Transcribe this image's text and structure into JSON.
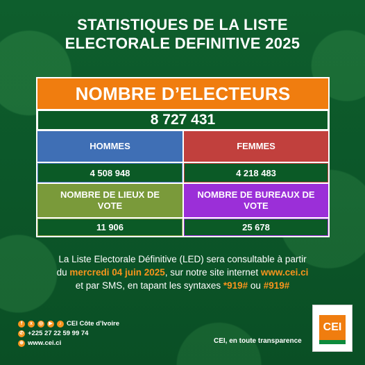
{
  "title_line1": "STATISTIQUES DE LA LISTE",
  "title_line2": "ELECTORALE DEFINITIVE 2025",
  "header": "NOMBRE D’ELECTEURS",
  "total_electeurs": "8 727 431",
  "stats": [
    {
      "label": "HOMMES",
      "value": "4 508 948",
      "color": "#3f6fb5"
    },
    {
      "label": "FEMMES",
      "value": "4 218 483",
      "color": "#c1403d"
    },
    {
      "label": "NOMBRE DE LIEUX DE VOTE",
      "value": "11 906",
      "color": "#7a9a3a"
    },
    {
      "label": "NOMBRE DE BUREAUX DE VOTE",
      "value": "25 678",
      "color": "#9b2fd8"
    }
  ],
  "info": {
    "line1": "La Liste Electorale Définitive (LED) sera consultable à partir",
    "line2_pre": "du ",
    "date": "mercredi 04 juin 2025",
    "line2_mid": ", sur notre site internet ",
    "site": "www.cei.ci",
    "line3_pre": "et par SMS, en tapant les syntaxes ",
    "code1": "*919#",
    "line3_mid": " ou ",
    "code2": "#919#"
  },
  "contact": {
    "social": "CEI Côte d’Ivoire",
    "phone": "+225 27 22 59 99 74",
    "web": "www.cei.ci"
  },
  "logo_text": "CEI",
  "tagline": "CEI, en toute transparence",
  "colors": {
    "orange": "#f07d0f",
    "green": "#0d5a2b",
    "highlight": "#f7941d"
  }
}
